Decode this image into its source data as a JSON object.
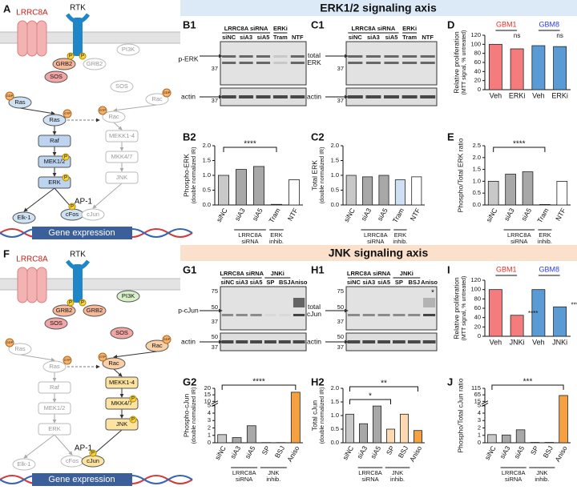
{
  "headers": {
    "erk": "ERK1/2 signaling axis",
    "jnk": "JNK signaling axis"
  },
  "panel_labels": [
    "A",
    "B1",
    "C1",
    "D",
    "B2",
    "C2",
    "E",
    "F",
    "G1",
    "H1",
    "I",
    "G2",
    "H2",
    "J"
  ],
  "small": {
    "p": "P",
    "gdp": "GDP",
    "gtp": "GTP"
  },
  "diagrams": [
    {
      "channel": "LRRC8A",
      "receptor": "RTK",
      "nodes": [
        "GRB2",
        "SOS",
        "Ras",
        "Ras",
        "Raf",
        "MEK1/2",
        "ERK",
        "PI3K",
        "GRB2",
        "SOS",
        "Rac",
        "Rac",
        "MEKK1-4",
        "MKK4/7",
        "JNK",
        "Elk-1",
        "cFos",
        "cJun"
      ],
      "tf": "AP-1",
      "output": "Gene expression"
    },
    {
      "channel": "LRRC8A",
      "receptor": "RTK",
      "nodes": [
        "GRB2",
        "SOS",
        "Ras",
        "Ras",
        "Raf",
        "MEK1/2",
        "ERK",
        "PI3K",
        "GRB2",
        "SOS",
        "Rac",
        "Rac",
        "MEKK1-4",
        "MKK4/7",
        "JNK",
        "Elk-1",
        "cFos",
        "cJun"
      ],
      "tf": "AP-1",
      "output": "Gene expression"
    }
  ],
  "blots": [
    {
      "groups": [
        "LRRC8A siRNA",
        "ERKi"
      ],
      "lanes": [
        "siNC",
        "siA3",
        "siA5",
        "Tram",
        "NTF"
      ],
      "targets": [
        [
          "p-ERK"
        ],
        [
          "actin"
        ]
      ],
      "mw": [
        37,
        37
      ]
    },
    {
      "groups": [
        "LRRC8A siRNA",
        "ERKi"
      ],
      "lanes": [
        "siNC",
        "siA3",
        "siA5",
        "Tram",
        "NTF"
      ],
      "targets": [
        [
          "total",
          "ERK"
        ],
        [
          "actin"
        ]
      ],
      "mw": [
        37,
        37
      ]
    },
    {
      "groups": [
        "LRRC8A siRNA",
        "JNKi"
      ],
      "lanes": [
        "siNC",
        "siA3",
        "siA5",
        "SP",
        "BSJ",
        "Aniso"
      ],
      "targets": [
        [
          "p-cJun"
        ],
        [
          "actin"
        ]
      ],
      "mw": [
        75,
        50,
        37,
        50,
        37
      ]
    },
    {
      "groups": [
        "LRRC8A siRNA",
        "JNKi"
      ],
      "lanes": [
        "siNC",
        "siA3",
        "siA5",
        "SP",
        "BSJ",
        "Aniso"
      ],
      "targets": [
        [
          "total",
          "cJun"
        ],
        [
          "actin"
        ]
      ],
      "mw": [
        75,
        50,
        37,
        50,
        37
      ],
      "note": "*"
    }
  ],
  "chart_data": [
    {
      "type": "bar",
      "ylabel": [
        "Phospho-ERK",
        "(double normalized IR)"
      ],
      "categories": [
        "siNC",
        "siA3",
        "siA5",
        "Tram",
        "NTF"
      ],
      "values": [
        1.0,
        1.2,
        1.3,
        0.02,
        0.85
      ],
      "colors": [
        "#c8c8c8",
        "#a8a8a8",
        "#a8a8a8",
        "#cfe0f5",
        "#ffffff"
      ],
      "ylim": [
        0,
        2
      ],
      "yticks": [
        {
          "value": 0,
          "label": "0.0"
        },
        0.5,
        {
          "value": 1,
          "label": "1.0"
        },
        1.5,
        {
          "value": 2,
          "label": "2.0"
        }
      ],
      "groups": [
        [
          "LRRC8A",
          "siRNA"
        ],
        [
          "ERK",
          "inhib."
        ]
      ],
      "annotations": [
        "****"
      ]
    },
    {
      "type": "bar",
      "ylabel": [
        "Total ERK",
        "(double normalized IR)"
      ],
      "categories": [
        "siNC",
        "siA3",
        "siA5",
        "Tram",
        "NTF"
      ],
      "values": [
        1.0,
        0.95,
        1.0,
        0.85,
        0.95
      ],
      "colors": [
        "#c8c8c8",
        "#a8a8a8",
        "#a8a8a8",
        "#cfe0f5",
        "#ffffff"
      ],
      "ylim": [
        0,
        2
      ],
      "yticks": [
        {
          "value": 0,
          "label": "0.0"
        },
        0.5,
        {
          "value": 1,
          "label": "1.0"
        },
        1.5,
        {
          "value": 2,
          "label": "2.0"
        }
      ],
      "groups": [
        [
          "LRRC8A",
          "siRNA"
        ],
        [
          "ERK",
          "inhib."
        ]
      ]
    },
    {
      "type": "bar",
      "ylabel": [
        "Phospho/Total ERK ratio"
      ],
      "categories": [
        "siNC",
        "siA3",
        "siA5",
        "Tram",
        "NTF"
      ],
      "values": [
        1.0,
        1.3,
        1.4,
        0.02,
        1.0
      ],
      "colors": [
        "#c8c8c8",
        "#a8a8a8",
        "#a8a8a8",
        "#cfe0f5",
        "#ffffff"
      ],
      "ylim": [
        0,
        2.5
      ],
      "yticks": [
        {
          "value": 0,
          "label": "0.0"
        },
        0.5,
        {
          "value": 1,
          "label": "1.0"
        },
        1.5,
        {
          "value": 2,
          "label": "2.0"
        },
        2.5
      ],
      "groups": [
        [
          "LRRC8A",
          "siRNA"
        ],
        [
          "ERK",
          "inhib."
        ]
      ],
      "annotations": [
        "****"
      ]
    },
    {
      "type": "bar",
      "ylabel": [
        "Relative proliferation",
        "(MTT signal, % untreated)"
      ],
      "categories": [
        "Veh",
        "ERKi",
        "Veh",
        "ERKi"
      ],
      "values": [
        100,
        90,
        97,
        95
      ],
      "colors": [
        "#f47c7c",
        "#f47c7c",
        "#5b9bd5",
        "#5b9bd5"
      ],
      "ylim": [
        0,
        120
      ],
      "yticks": [
        0,
        20,
        40,
        60,
        80,
        100,
        120
      ],
      "groups": [
        [
          "GBM1"
        ],
        [
          "GBM8"
        ]
      ],
      "group_colors": [
        "#e0312a",
        "#2b3fd6"
      ],
      "annotations": [
        "ns",
        "ns"
      ]
    },
    {
      "type": "bar",
      "ylabel": [
        "Relative proliferation",
        "(MTT signal, % untreated)"
      ],
      "categories": [
        "Veh",
        "JNKi",
        "Veh",
        "JNKi"
      ],
      "values": [
        100,
        45,
        100,
        63
      ],
      "colors": [
        "#f47c7c",
        "#f47c7c",
        "#5b9bd5",
        "#5b9bd5"
      ],
      "ylim": [
        0,
        120
      ],
      "yticks": [
        0,
        20,
        40,
        60,
        80,
        100,
        120
      ],
      "groups": [
        [
          "GBM1"
        ],
        [
          "GBM8"
        ]
      ],
      "group_colors": [
        "#e0312a",
        "#2b3fd6"
      ],
      "annotations": [
        "****",
        "****"
      ]
    },
    {
      "type": "bar",
      "ylabel": [
        "Phospho-cJun",
        "(double normalized IR)"
      ],
      "categories": [
        "siNC",
        "siA3",
        "siA5",
        "SP",
        "BSJ",
        "Aniso"
      ],
      "values": [
        1.1,
        0.7,
        2.3,
        0.03,
        0.03,
        17
      ],
      "colors": [
        "#c8c8c8",
        "#a8a8a8",
        "#a8a8a8",
        "#fcd9b0",
        "#fcd9b0",
        "#f5a142"
      ],
      "ylim": [
        0,
        20
      ],
      "ybreak": [
        5,
        10
      ],
      "yticks": [
        0,
        1,
        2,
        3,
        4,
        5,
        10,
        15,
        20
      ],
      "groups": [
        [
          "LRRC8A",
          "siRNA"
        ],
        [
          "JNK",
          "inhib."
        ]
      ],
      "annotations": [
        "****"
      ]
    },
    {
      "type": "bar",
      "ylabel": [
        "Total cJun",
        "(double normalized IR)"
      ],
      "categories": [
        "siNC",
        "siA3",
        "siA5",
        "SP",
        "BSJ",
        "Aniso"
      ],
      "values": [
        1.05,
        0.7,
        1.35,
        0.5,
        1.05,
        0.45
      ],
      "colors": [
        "#c8c8c8",
        "#a8a8a8",
        "#a8a8a8",
        "#fcd9b0",
        "#fcd9b0",
        "#f5a142"
      ],
      "ylim": [
        0,
        2
      ],
      "yticks": [
        {
          "value": 0,
          "label": "0.0"
        },
        0.5,
        {
          "value": 1,
          "label": "1.0"
        },
        1.5,
        {
          "value": 2,
          "label": "2.0"
        }
      ],
      "groups": [
        [
          "LRRC8A",
          "siRNA"
        ],
        [
          "JNK",
          "inhib."
        ]
      ],
      "annotations": [
        "*",
        "**"
      ]
    },
    {
      "type": "bar",
      "ylabel": [
        "Phospho/Total cJun ratio"
      ],
      "categories": [
        "siNC",
        "siA3",
        "siA5",
        "SP",
        "BSJ",
        "Aniso"
      ],
      "values": [
        1.1,
        1.05,
        1.75,
        0.05,
        0.05,
        60
      ],
      "colors": [
        "#c8c8c8",
        "#a8a8a8",
        "#a8a8a8",
        "#fcd9b0",
        "#fcd9b0",
        "#f5a142"
      ],
      "ylim": [
        0,
        115
      ],
      "ybreak": [
        5,
        15
      ],
      "yticks": [
        0,
        1,
        2,
        3,
        4,
        5,
        15,
        65,
        115
      ],
      "groups": [
        [
          "LRRC8A",
          "siRNA"
        ],
        [
          "JNK",
          "inhib."
        ]
      ],
      "annotations": [
        "***"
      ]
    }
  ]
}
